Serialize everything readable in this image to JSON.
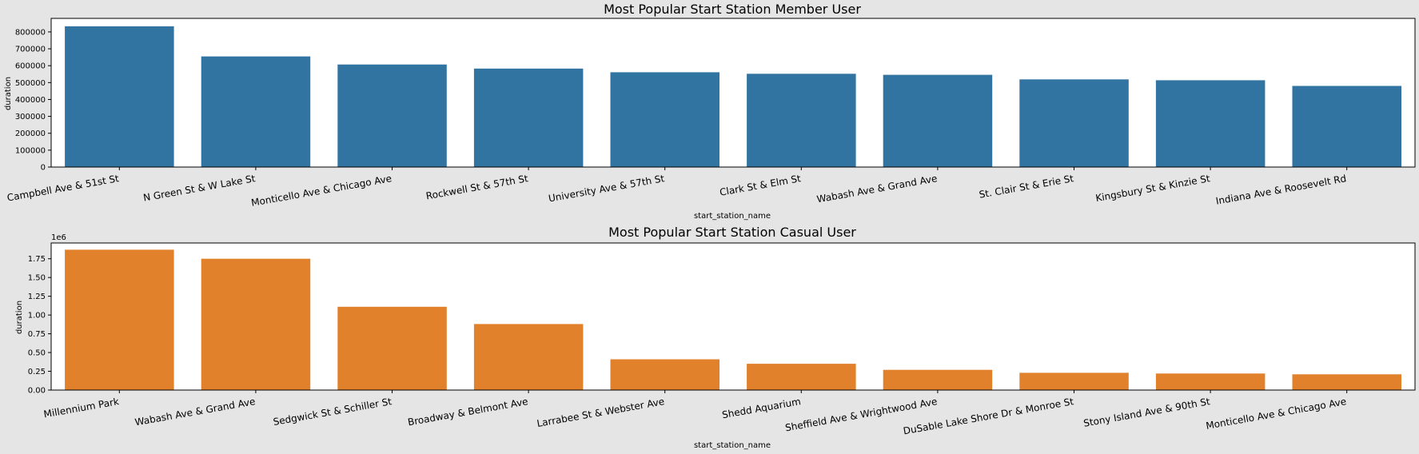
{
  "chart_data": [
    {
      "type": "bar",
      "title": "Most Popular Start Station Member User",
      "xlabel": "start_station_name",
      "ylabel": "duration",
      "color": "#3274a1",
      "categories": [
        "Campbell Ave & 51st St",
        "N Green St & W Lake St",
        "Monticello Ave & Chicago Ave",
        "Rockwell St & 57th St",
        "University Ave & 57th St",
        "Clark St & Elm St",
        "Wabash Ave & Grand Ave",
        "St. Clair St & Erie St",
        "Kingsbury St & Kinzie St",
        "Indiana Ave & Roosevelt Rd"
      ],
      "values": [
        833000,
        655000,
        607000,
        583000,
        561000,
        552000,
        546000,
        519000,
        514000,
        480000
      ],
      "ylim": [
        0,
        880000
      ],
      "yticks": [
        0,
        100000,
        200000,
        300000,
        400000,
        500000,
        600000,
        700000,
        800000
      ],
      "ytick_labels": [
        "0",
        "100000",
        "200000",
        "300000",
        "400000",
        "500000",
        "600000",
        "700000",
        "800000"
      ],
      "grid": false
    },
    {
      "type": "bar",
      "title": "Most Popular Start Station Casual User",
      "xlabel": "start_station_name",
      "ylabel": "duration",
      "offset_label": "1e6",
      "color": "#e1812c",
      "categories": [
        "Millennium Park",
        "Wabash Ave & Grand Ave",
        "Sedgwick St & Schiller St",
        "Broadway & Belmont Ave",
        "Larrabee St & Webster Ave",
        "Shedd Aquarium",
        "Sheffield Ave & Wrightwood Ave",
        "DuSable Lake Shore Dr & Monroe St",
        "Stony Island Ave & 90th St",
        "Monticello Ave & Chicago Ave"
      ],
      "values": [
        1.87,
        1.75,
        1.11,
        0.88,
        0.41,
        0.35,
        0.27,
        0.23,
        0.22,
        0.21
      ],
      "ylim": [
        0,
        1.96
      ],
      "yticks": [
        0,
        0.25,
        0.5,
        0.75,
        1.0,
        1.25,
        1.5,
        1.75
      ],
      "ytick_labels": [
        "0.00",
        "0.25",
        "0.50",
        "0.75",
        "1.00",
        "1.25",
        "1.50",
        "1.75"
      ],
      "grid": false
    }
  ]
}
